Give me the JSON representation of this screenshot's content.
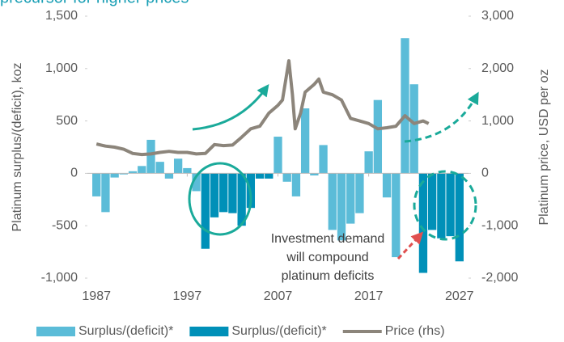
{
  "chart_data": {
    "type": "bar",
    "title": "precursor for higher prices",
    "y_label": "Platinum surplus/(deficit), koz",
    "y2_label": "Platinum price, USD per oz",
    "annotation": [
      "Investment demand",
      "will compound",
      "platinum deficits"
    ],
    "x": [
      1987,
      1988,
      1989,
      1990,
      1991,
      1992,
      1993,
      1994,
      1995,
      1996,
      1997,
      1998,
      1999,
      2000,
      2001,
      2002,
      2003,
      2004,
      2005,
      2006,
      2007,
      2008,
      2009,
      2010,
      2011,
      2012,
      2013,
      2014,
      2015,
      2016,
      2017,
      2018,
      2019,
      2020,
      2021,
      2022,
      2023,
      2024,
      2025,
      2026,
      2027
    ],
    "xlim": [
      1986,
      2028
    ],
    "xticks": [
      1987,
      1997,
      2007,
      2017,
      2027
    ],
    "ylim": [
      -1000,
      1500
    ],
    "yticks": [
      {
        "value": -1000,
        "label": "-1,000"
      },
      -500,
      0,
      500,
      {
        "value": 1000,
        "label": "1,000"
      },
      {
        "value": 1500,
        "label": "1,500"
      }
    ],
    "y2lim": [
      -2000,
      3000
    ],
    "y2ticks": [
      {
        "value": -2000,
        "label": "-2,000"
      },
      {
        "value": -1000,
        "label": "-1,000"
      },
      0,
      {
        "value": 1000,
        "label": "1,000"
      },
      {
        "value": 2000,
        "label": "2,000"
      },
      {
        "value": 3000,
        "label": "3,000"
      }
    ],
    "series": [
      {
        "name": "Surplus/(deficit)*",
        "color": "#5bbcd8",
        "values": [
          -220,
          -370,
          -40,
          -10,
          20,
          70,
          320,
          110,
          -50,
          140,
          50,
          -170,
          null,
          null,
          null,
          null,
          null,
          null,
          null,
          null,
          350,
          -80,
          -220,
          620,
          -20,
          270,
          -540,
          -640,
          -480,
          -380,
          210,
          700,
          -230,
          -800,
          1290,
          850,
          null,
          null,
          null,
          null,
          null
        ]
      },
      {
        "name": "Surplus/(deficit)*",
        "color": "#0090b8",
        "values": [
          null,
          null,
          null,
          null,
          null,
          null,
          null,
          null,
          null,
          null,
          null,
          null,
          -720,
          -420,
          -370,
          -380,
          -500,
          -330,
          -50,
          -50,
          null,
          null,
          null,
          null,
          null,
          null,
          null,
          null,
          null,
          null,
          null,
          null,
          null,
          null,
          null,
          null,
          -950,
          -540,
          -620,
          -600,
          -840
        ]
      },
      {
        "name": "Price (rhs)",
        "color": "#8c857b",
        "type": "line",
        "axis": "y2",
        "x": [
          1987,
          1988,
          1989,
          1990,
          1991,
          1992,
          1993,
          1994,
          1995,
          1996,
          1997,
          1998,
          1999,
          2000,
          2001,
          2002,
          2003,
          2004,
          2005,
          2006,
          2007,
          2007.5,
          2008.2,
          2008.6,
          2008.9,
          2009.5,
          2010,
          2011,
          2011.5,
          2012,
          2013,
          2014,
          2015,
          2016,
          2017,
          2018,
          2019,
          2020,
          2021,
          2022,
          2023,
          2023.6
        ],
        "values": [
          560,
          520,
          500,
          460,
          380,
          360,
          370,
          400,
          420,
          400,
          400,
          370,
          380,
          550,
          530,
          540,
          690,
          850,
          900,
          1150,
          1300,
          1400,
          2150,
          1500,
          850,
          1150,
          1550,
          1700,
          1800,
          1550,
          1500,
          1400,
          1050,
          1000,
          950,
          850,
          870,
          900,
          1100,
          950,
          1000,
          950
        ]
      }
    ]
  }
}
